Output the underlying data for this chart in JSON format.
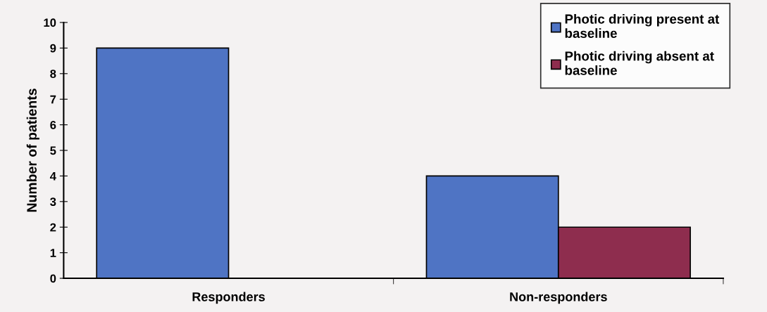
{
  "chart_data": {
    "type": "bar",
    "ylabel": "Number of patients",
    "categories": [
      "Responders",
      "Non-responders"
    ],
    "series": [
      {
        "name": "Photic driving present at baseline",
        "color": "#4f74c4",
        "values": [
          9,
          4
        ]
      },
      {
        "name": "Photic driving absent at baseline",
        "color": "#8e2d4e",
        "values": [
          null,
          2
        ]
      }
    ],
    "ylim": [
      0,
      10
    ],
    "yticks": [
      0,
      1,
      2,
      3,
      4,
      5,
      6,
      7,
      8,
      9,
      10
    ],
    "grid": false,
    "legend": "top right"
  }
}
